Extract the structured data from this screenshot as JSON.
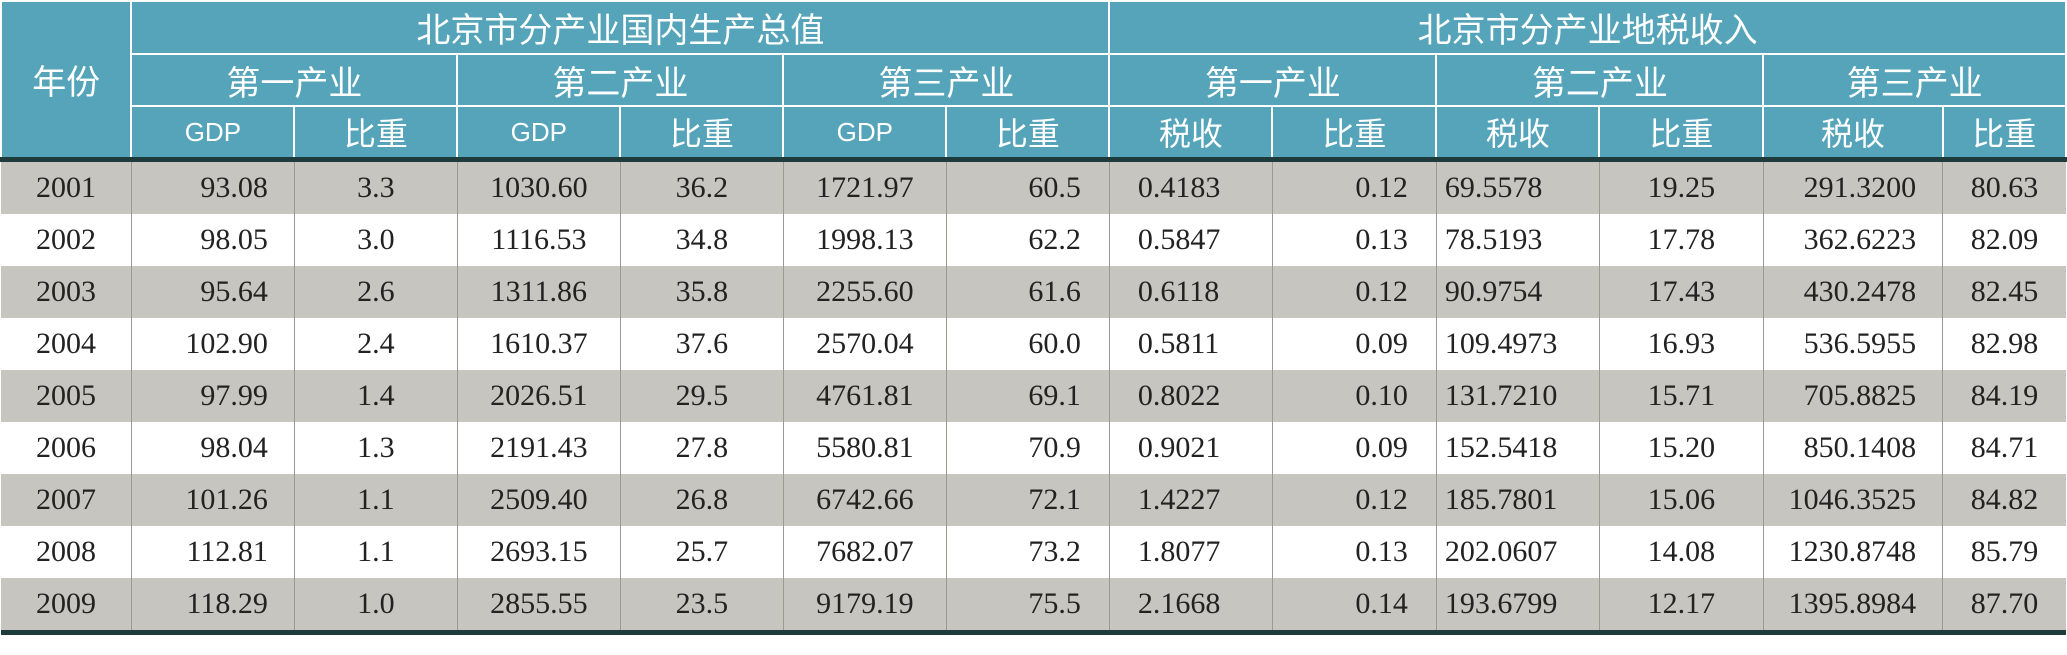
{
  "header": {
    "year_label": "年份",
    "gdp_group": "北京市分产业国内生产总值",
    "tax_group": "北京市分产业地税收入",
    "primary": "第一产业",
    "secondary": "第二产业",
    "tertiary": "第三产业",
    "gdp": "GDP",
    "share": "比重",
    "tax": "税收"
  },
  "rows": [
    {
      "year": "2001",
      "p_gdp": "93.08",
      "p_share": "3.3",
      "s_gdp": "1030.60",
      "s_share": "36.2",
      "t_gdp": "1721.97",
      "t_share": "60.5",
      "p_tax": "0.4183",
      "p_tshare": "0.12",
      "s_tax": "69.5578",
      "s_tshare": "19.25",
      "t_tax": "291.3200",
      "t_tshare": "80.63"
    },
    {
      "year": "2002",
      "p_gdp": "98.05",
      "p_share": "3.0",
      "s_gdp": "1116.53",
      "s_share": "34.8",
      "t_gdp": "1998.13",
      "t_share": "62.2",
      "p_tax": "0.5847",
      "p_tshare": "0.13",
      "s_tax": "78.5193",
      "s_tshare": "17.78",
      "t_tax": "362.6223",
      "t_tshare": "82.09"
    },
    {
      "year": "2003",
      "p_gdp": "95.64",
      "p_share": "2.6",
      "s_gdp": "1311.86",
      "s_share": "35.8",
      "t_gdp": "2255.60",
      "t_share": "61.6",
      "p_tax": "0.6118",
      "p_tshare": "0.12",
      "s_tax": "90.9754",
      "s_tshare": "17.43",
      "t_tax": "430.2478",
      "t_tshare": "82.45"
    },
    {
      "year": "2004",
      "p_gdp": "102.90",
      "p_share": "2.4",
      "s_gdp": "1610.37",
      "s_share": "37.6",
      "t_gdp": "2570.04",
      "t_share": "60.0",
      "p_tax": "0.5811",
      "p_tshare": "0.09",
      "s_tax": "109.4973",
      "s_tshare": "16.93",
      "t_tax": "536.5955",
      "t_tshare": "82.98"
    },
    {
      "year": "2005",
      "p_gdp": "97.99",
      "p_share": "1.4",
      "s_gdp": "2026.51",
      "s_share": "29.5",
      "t_gdp": "4761.81",
      "t_share": "69.1",
      "p_tax": "0.8022",
      "p_tshare": "0.10",
      "s_tax": "131.7210",
      "s_tshare": "15.71",
      "t_tax": "705.8825",
      "t_tshare": "84.19"
    },
    {
      "year": "2006",
      "p_gdp": "98.04",
      "p_share": "1.3",
      "s_gdp": "2191.43",
      "s_share": "27.8",
      "t_gdp": "5580.81",
      "t_share": "70.9",
      "p_tax": "0.9021",
      "p_tshare": "0.09",
      "s_tax": "152.5418",
      "s_tshare": "15.20",
      "t_tax": "850.1408",
      "t_tshare": "84.71"
    },
    {
      "year": "2007",
      "p_gdp": "101.26",
      "p_share": "1.1",
      "s_gdp": "2509.40",
      "s_share": "26.8",
      "t_gdp": "6742.66",
      "t_share": "72.1",
      "p_tax": "1.4227",
      "p_tshare": "0.12",
      "s_tax": "185.7801",
      "s_tshare": "15.06",
      "t_tax": "1046.3525",
      "t_tshare": "84.82"
    },
    {
      "year": "2008",
      "p_gdp": "112.81",
      "p_share": "1.1",
      "s_gdp": "2693.15",
      "s_share": "25.7",
      "t_gdp": "7682.07",
      "t_share": "73.2",
      "p_tax": "1.8077",
      "p_tshare": "0.13",
      "s_tax": "202.0607",
      "s_tshare": "14.08",
      "t_tax": "1230.8748",
      "t_tshare": "85.79"
    },
    {
      "year": "2009",
      "p_gdp": "118.29",
      "p_share": "1.0",
      "s_gdp": "2855.55",
      "s_share": "23.5",
      "t_gdp": "9179.19",
      "t_share": "75.5",
      "p_tax": "2.1668",
      "p_tshare": "0.14",
      "s_tax": "193.6799",
      "s_tshare": "12.17",
      "t_tax": "1395.8984",
      "t_tshare": "87.70"
    }
  ]
}
